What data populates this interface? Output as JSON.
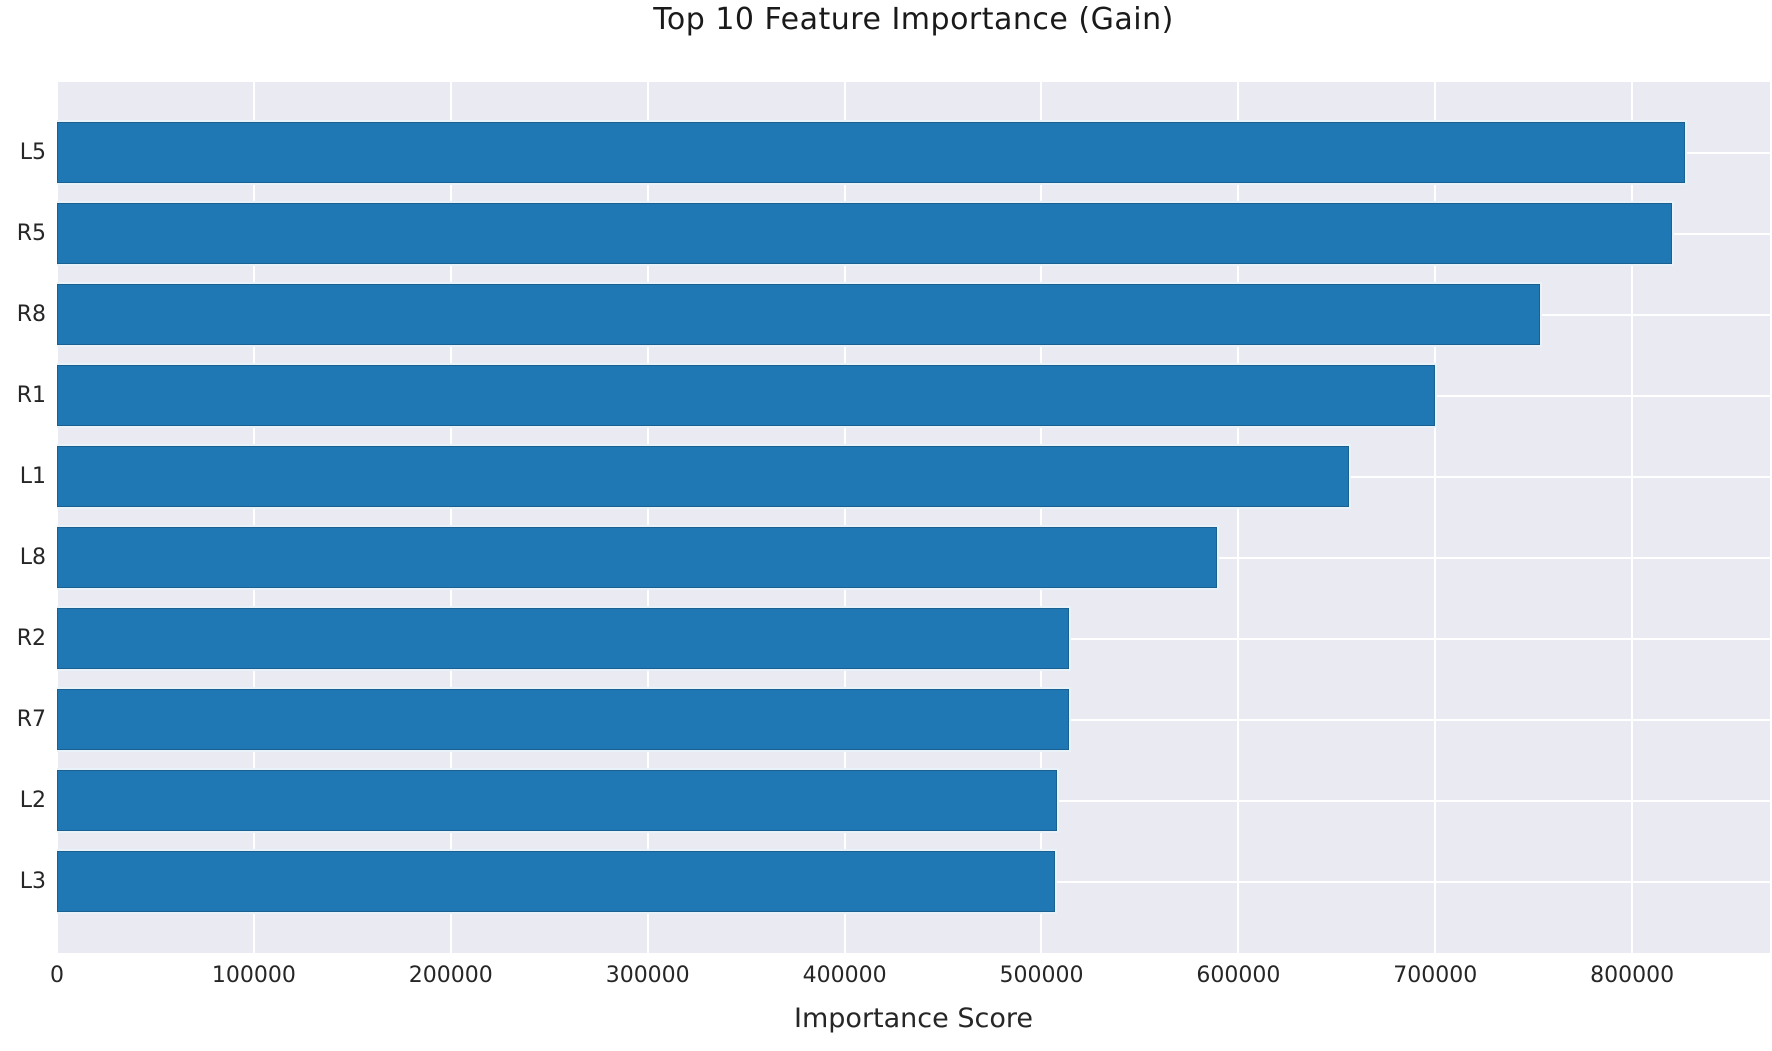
{
  "title": "Top 10 Feature Importance (Gain)",
  "chart_data": {
    "type": "bar",
    "orientation": "horizontal",
    "title": "Top 10 Feature Importance (Gain)",
    "xlabel": "Importance Score",
    "ylabel": "",
    "categories": [
      "L5",
      "R5",
      "R8",
      "R1",
      "L1",
      "L8",
      "R2",
      "R7",
      "L2",
      "L3"
    ],
    "values": [
      827000,
      820000,
      753000,
      700000,
      656000,
      589000,
      514000,
      514000,
      508000,
      507000
    ],
    "x_ticks": [
      0,
      100000,
      200000,
      300000,
      400000,
      500000,
      600000,
      700000,
      800000
    ],
    "xlim": [
      0,
      870000
    ],
    "grid": true,
    "legend": false,
    "style": "seaborn-darkgrid",
    "colors": {
      "bar": "#1f77b4",
      "plot_background": "#eaeaf2",
      "gridline": "#ffffff",
      "figure_background": "#ffffff",
      "text": "#262626"
    }
  }
}
